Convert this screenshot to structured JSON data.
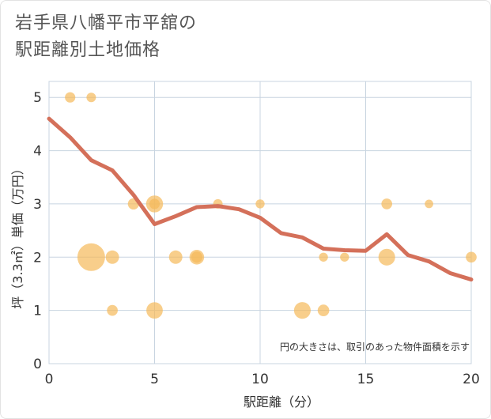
{
  "title": {
    "line1": "岩手県八幡平市平舘の",
    "line2": "駅距離別土地価格"
  },
  "chart_data": {
    "type": "scatter",
    "xlabel": "駅距離（分）",
    "ylabel": "坪（3.3㎡）単価（万円）",
    "xlim": [
      0,
      20
    ],
    "ylim": [
      0,
      5.3
    ],
    "xticks": [
      0,
      5,
      10,
      15,
      20
    ],
    "yticks": [
      0,
      1,
      2,
      3,
      4,
      5
    ],
    "grid": true,
    "note": "円の大きさは、取引のあった物件面積を示す",
    "colors": {
      "bubble": "#f5b95a",
      "line": "#d4705a",
      "grid": "#c8d4e0"
    },
    "bubbles": [
      {
        "x": 1,
        "y": 5.0,
        "size": 1.2
      },
      {
        "x": 2,
        "y": 5.0,
        "size": 1.0
      },
      {
        "x": 2,
        "y": 2.0,
        "size": 8.5
      },
      {
        "x": 3,
        "y": 2.0,
        "size": 2.0
      },
      {
        "x": 3,
        "y": 1.0,
        "size": 1.3
      },
      {
        "x": 4,
        "y": 3.0,
        "size": 1.4
      },
      {
        "x": 5,
        "y": 3.0,
        "size": 3.2
      },
      {
        "x": 5,
        "y": 3.0,
        "size": 1.2
      },
      {
        "x": 5,
        "y": 1.0,
        "size": 3.0
      },
      {
        "x": 6,
        "y": 2.0,
        "size": 2.0
      },
      {
        "x": 7,
        "y": 2.0,
        "size": 2.4
      },
      {
        "x": 7,
        "y": 2.0,
        "size": 1.4
      },
      {
        "x": 8,
        "y": 3.0,
        "size": 1.0
      },
      {
        "x": 10,
        "y": 3.0,
        "size": 0.9
      },
      {
        "x": 12,
        "y": 1.0,
        "size": 3.1
      },
      {
        "x": 13,
        "y": 1.0,
        "size": 1.5
      },
      {
        "x": 13,
        "y": 2.0,
        "size": 0.9
      },
      {
        "x": 14,
        "y": 2.0,
        "size": 0.9
      },
      {
        "x": 16,
        "y": 3.0,
        "size": 1.3
      },
      {
        "x": 16,
        "y": 2.0,
        "size": 3.1
      },
      {
        "x": 18,
        "y": 3.0,
        "size": 0.8
      },
      {
        "x": 20,
        "y": 2.0,
        "size": 1.3
      }
    ],
    "trend": {
      "x": [
        0,
        1,
        2,
        3,
        4,
        5,
        6,
        7,
        8,
        9,
        10,
        11,
        12,
        13,
        14,
        15,
        16,
        17,
        18,
        19,
        20
      ],
      "y": [
        4.6,
        4.25,
        3.82,
        3.63,
        3.17,
        2.62,
        2.77,
        2.94,
        2.96,
        2.9,
        2.74,
        2.45,
        2.37,
        2.16,
        2.13,
        2.12,
        2.43,
        2.04,
        1.92,
        1.7,
        1.58
      ]
    }
  }
}
